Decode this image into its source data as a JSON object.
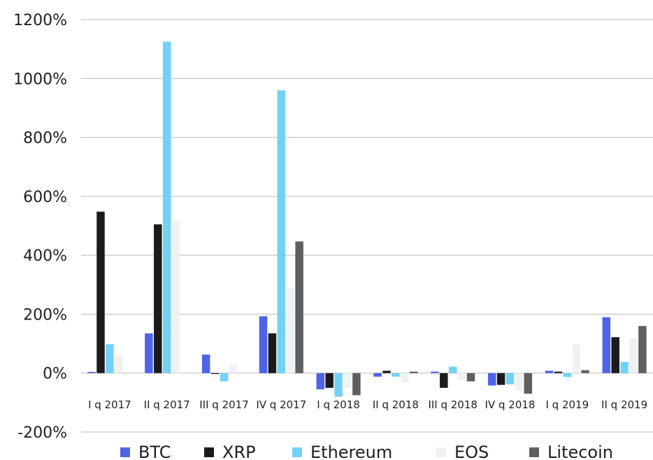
{
  "chart_data": {
    "type": "bar",
    "title": "",
    "xlabel": "",
    "ylabel": "",
    "ylim": [
      -200,
      1200
    ],
    "y_ticks": [
      -200,
      0,
      200,
      400,
      600,
      800,
      1000,
      1200
    ],
    "y_tick_labels": [
      "-200%",
      "0%",
      "200%",
      "400%",
      "600%",
      "800%",
      "1000%",
      "1200%"
    ],
    "grid": true,
    "legend_position": "bottom",
    "categories": [
      "I q 2017",
      "II q 2017",
      "III q 2017",
      "IV q 2017",
      "I q 2018",
      "II q 2018",
      "III q 2018",
      "IV q 2018",
      "I q 2019",
      "II q 2019"
    ],
    "series": [
      {
        "name": "BTC",
        "color": "#4f63e8",
        "values": [
          4,
          135,
          63,
          193,
          -55,
          -12,
          5,
          -42,
          8,
          190
        ]
      },
      {
        "name": "XRP",
        "color": "#1b1b1b",
        "values": [
          548,
          505,
          -3,
          135,
          -50,
          8,
          -50,
          -40,
          5,
          122
        ]
      },
      {
        "name": "Ethereum",
        "color": "#73d1f7",
        "values": [
          98,
          1125,
          -28,
          960,
          -80,
          -12,
          22,
          -38,
          -13,
          38
        ]
      },
      {
        "name": "EOS",
        "color": "#f0f1f3",
        "values": [
          60,
          518,
          30,
          290,
          -50,
          -32,
          -25,
          -60,
          98,
          118
        ]
      },
      {
        "name": "Litecoin",
        "color": "#5f5f5f",
        "values": [
          0,
          0,
          0,
          447,
          -75,
          5,
          -28,
          -70,
          10,
          160
        ]
      }
    ]
  }
}
